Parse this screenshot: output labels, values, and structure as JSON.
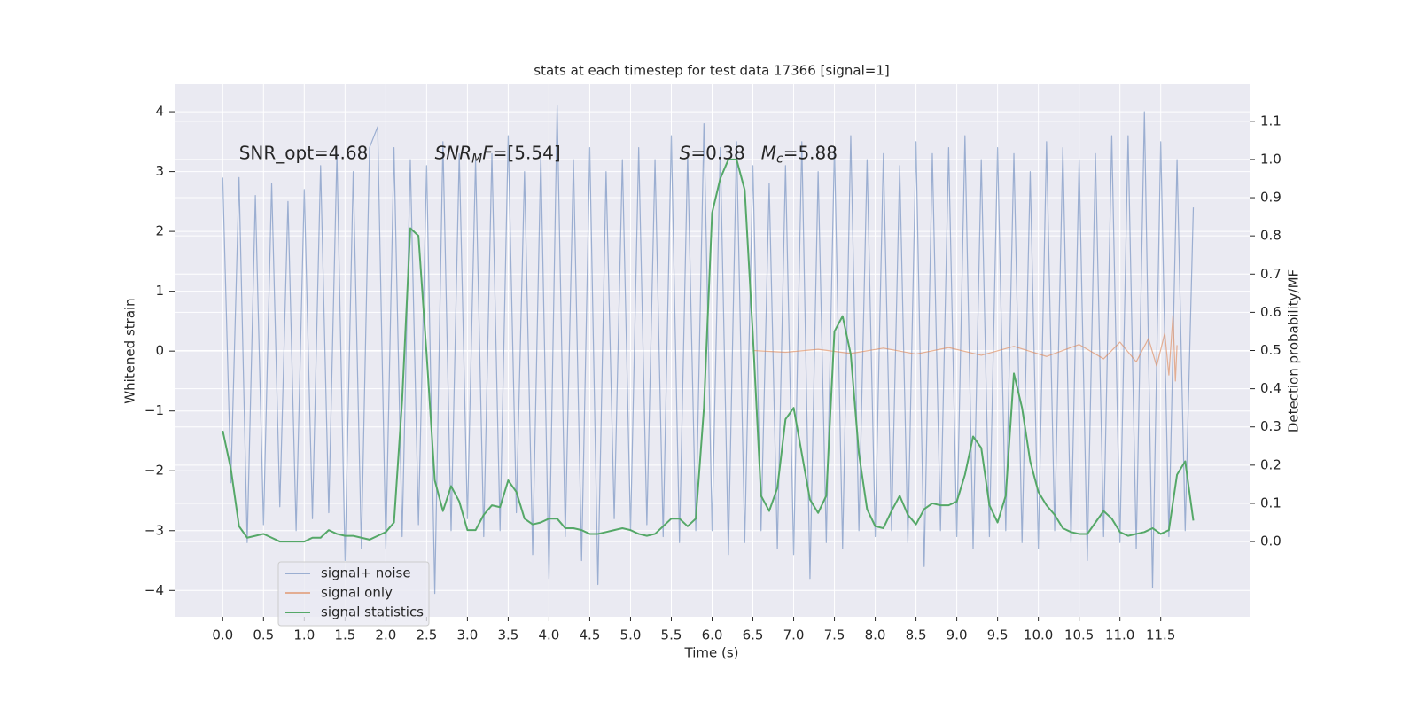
{
  "chart_data": {
    "type": "line",
    "title": "stats at each timestep for test data 17366 [signal=1]",
    "xlabel": "Time (s)",
    "ylabel": "Whitened strain",
    "y2label": "Detection probability/MF",
    "grid": true,
    "legend": "lower left",
    "xlim": [
      -0.59,
      12.59
    ],
    "ylim": [
      -4.44,
      4.46
    ],
    "y2lim": [
      -0.197,
      1.197
    ],
    "xticks": [
      {
        "value": 0,
        "label": "0.0"
      },
      0.5,
      {
        "value": 1,
        "label": "1.0"
      },
      1.5,
      {
        "value": 2,
        "label": "2.0"
      },
      2.5,
      {
        "value": 3,
        "label": "3.0"
      },
      3.5,
      {
        "value": 4,
        "label": "4.0"
      },
      4.5,
      {
        "value": 5,
        "label": "5.0"
      },
      5.5,
      {
        "value": 6,
        "label": "6.0"
      },
      6.5,
      {
        "value": 7,
        "label": "7.0"
      },
      7.5,
      {
        "value": 8,
        "label": "8.0"
      },
      8.5,
      {
        "value": 9,
        "label": "9.0"
      },
      9.5,
      {
        "value": 10,
        "label": "10.0"
      },
      10.5,
      {
        "value": 11,
        "label": "11.0"
      },
      11.5
    ],
    "yticks": [
      {
        "value": -4,
        "label": "−4"
      },
      {
        "value": -3,
        "label": "−3"
      },
      {
        "value": -2,
        "label": "−2"
      },
      {
        "value": -1,
        "label": "−1"
      },
      0,
      1,
      2,
      3,
      4
    ],
    "y2ticks": [
      {
        "value": 0,
        "label": "0.0"
      },
      0.1,
      0.2,
      0.3,
      0.4,
      0.5,
      0.6,
      0.7,
      0.8,
      0.9,
      {
        "value": 1,
        "label": "1.0"
      },
      1.1
    ],
    "annotations": [
      {
        "x": 0.2,
        "y": 3.3,
        "parts": [
          {
            "text": "SNR_opt=4.68",
            "style": "normal"
          }
        ]
      },
      {
        "x": 2.6,
        "y": 3.3,
        "parts": [
          {
            "text": "SNR",
            "style": "italic"
          },
          {
            "text": "M",
            "style": "sub"
          },
          {
            "text": "F",
            "style": "italic"
          },
          {
            "text": "=[5.54]",
            "style": "normal"
          }
        ]
      },
      {
        "x": 5.6,
        "y": 3.3,
        "parts": [
          {
            "text": "S",
            "style": "italic"
          },
          {
            "text": "=0.38",
            "style": "normal"
          }
        ]
      },
      {
        "x": 6.6,
        "y": 3.3,
        "parts": [
          {
            "text": "M",
            "style": "italic"
          },
          {
            "text": "c",
            "style": "sub"
          },
          {
            "text": "=5.88",
            "style": "normal"
          }
        ]
      }
    ],
    "x": [
      0.0,
      0.1,
      0.2,
      0.3,
      0.4,
      0.5,
      0.6,
      0.7,
      0.8,
      0.9,
      1.0,
      1.1,
      1.2,
      1.3,
      1.4,
      1.5,
      1.6,
      1.7,
      1.8,
      1.9,
      2.0,
      2.1,
      2.2,
      2.3,
      2.4,
      2.5,
      2.6,
      2.7,
      2.8,
      2.9,
      3.0,
      3.1,
      3.2,
      3.3,
      3.4,
      3.5,
      3.6,
      3.7,
      3.8,
      3.9,
      4.0,
      4.1,
      4.2,
      4.3,
      4.4,
      4.5,
      4.6,
      4.7,
      4.8,
      4.9,
      5.0,
      5.1,
      5.2,
      5.3,
      5.4,
      5.5,
      5.6,
      5.7,
      5.8,
      5.9,
      6.0,
      6.1,
      6.2,
      6.3,
      6.4,
      6.5,
      6.6,
      6.7,
      6.8,
      6.9,
      7.0,
      7.1,
      7.2,
      7.3,
      7.4,
      7.5,
      7.6,
      7.7,
      7.8,
      7.9,
      8.0,
      8.1,
      8.2,
      8.3,
      8.4,
      8.5,
      8.6,
      8.7,
      8.8,
      8.9,
      9.0,
      9.1,
      9.2,
      9.3,
      9.4,
      9.5,
      9.6,
      9.7,
      9.8,
      9.9,
      10.0,
      10.1,
      10.2,
      10.3,
      10.4,
      10.5,
      10.6,
      10.7,
      10.8,
      10.9,
      11.0,
      11.1,
      11.2,
      11.3,
      11.4,
      11.5,
      11.6,
      11.7,
      11.8,
      11.9
    ],
    "series": [
      {
        "name": "signal+ noise",
        "color": "#4c72b0",
        "alpha": 0.5,
        "values": [
          2.9,
          -2.2,
          2.9,
          -3.2,
          2.6,
          -2.9,
          2.8,
          -2.6,
          2.5,
          -3.0,
          2.7,
          -2.8,
          3.1,
          -2.7,
          3.3,
          -3.5,
          3.0,
          -3.3,
          3.4,
          3.75,
          -3.3,
          3.4,
          -3.1,
          3.2,
          -2.9,
          3.1,
          -4.05,
          3.5,
          -3.0,
          3.3,
          -2.8,
          3.2,
          -3.1,
          3.3,
          -3.0,
          3.6,
          -2.7,
          3.0,
          -3.4,
          3.3,
          -3.8,
          4.1,
          -3.1,
          3.2,
          -3.5,
          3.4,
          -3.9,
          3.0,
          -2.8,
          3.2,
          -3.0,
          3.4,
          -2.9,
          3.2,
          -3.1,
          3.6,
          -3.2,
          3.3,
          -3.0,
          3.8,
          -3.0,
          3.4,
          -3.4,
          3.5,
          -3.2,
          3.1,
          -3.0,
          2.8,
          -3.3,
          3.1,
          -3.4,
          3.5,
          -3.8,
          3.0,
          -3.2,
          3.4,
          -3.3,
          3.6,
          -3.0,
          3.2,
          -3.1,
          3.3,
          -3.0,
          3.1,
          -3.2,
          3.5,
          -3.6,
          3.3,
          -3.0,
          3.4,
          -3.1,
          3.6,
          -3.3,
          3.2,
          -3.1,
          3.4,
          -3.0,
          3.3,
          -3.2,
          3.0,
          -3.3,
          3.5,
          -3.0,
          3.4,
          -3.2,
          3.2,
          -3.5,
          3.3,
          -3.1,
          3.6,
          -3.2,
          3.6,
          -3.3,
          4.0,
          -3.95,
          3.5,
          -3.1,
          3.2,
          -3.0,
          2.4
        ]
      },
      {
        "name": "signal only",
        "color": "#dd8452",
        "alpha": 0.6,
        "x": [
          6.5,
          6.9,
          7.3,
          7.7,
          8.1,
          8.5,
          8.9,
          9.3,
          9.7,
          10.1,
          10.5,
          10.8,
          11.0,
          11.2,
          11.35,
          11.45,
          11.55,
          11.6,
          11.65,
          11.68,
          11.7
        ],
        "values": [
          0.01,
          -0.02,
          0.03,
          -0.04,
          0.05,
          -0.05,
          0.06,
          -0.07,
          0.08,
          -0.09,
          0.11,
          -0.13,
          0.15,
          -0.18,
          0.21,
          -0.25,
          0.3,
          -0.4,
          0.6,
          -0.5,
          0.1
        ]
      },
      {
        "name": "signal statistics",
        "color": "#55a868",
        "alpha": 1,
        "axis": "y2",
        "values": [
          0.29,
          0.19,
          0.04,
          0.01,
          0.015,
          0.02,
          0.01,
          0.0,
          0.0,
          0.0,
          0.0,
          0.01,
          0.01,
          0.03,
          0.02,
          0.015,
          0.015,
          0.01,
          0.005,
          0.015,
          0.025,
          0.05,
          0.37,
          0.82,
          0.8,
          0.49,
          0.16,
          0.08,
          0.145,
          0.105,
          0.03,
          0.03,
          0.07,
          0.095,
          0.09,
          0.16,
          0.13,
          0.06,
          0.045,
          0.05,
          0.06,
          0.06,
          0.035,
          0.035,
          0.03,
          0.02,
          0.02,
          0.025,
          0.03,
          0.035,
          0.03,
          0.02,
          0.015,
          0.02,
          0.04,
          0.06,
          0.06,
          0.04,
          0.06,
          0.35,
          0.86,
          0.95,
          1.0,
          1.0,
          0.92,
          0.54,
          0.12,
          0.08,
          0.14,
          0.32,
          0.35,
          0.23,
          0.11,
          0.075,
          0.12,
          0.55,
          0.59,
          0.49,
          0.23,
          0.085,
          0.04,
          0.035,
          0.08,
          0.12,
          0.07,
          0.045,
          0.085,
          0.1,
          0.095,
          0.095,
          0.105,
          0.175,
          0.275,
          0.245,
          0.095,
          0.05,
          0.12,
          0.44,
          0.35,
          0.21,
          0.13,
          0.095,
          0.07,
          0.035,
          0.025,
          0.02,
          0.02,
          0.05,
          0.08,
          0.06,
          0.025,
          0.015,
          0.02,
          0.025,
          0.035,
          0.02,
          0.03,
          0.175,
          0.21,
          0.055
        ]
      }
    ]
  }
}
